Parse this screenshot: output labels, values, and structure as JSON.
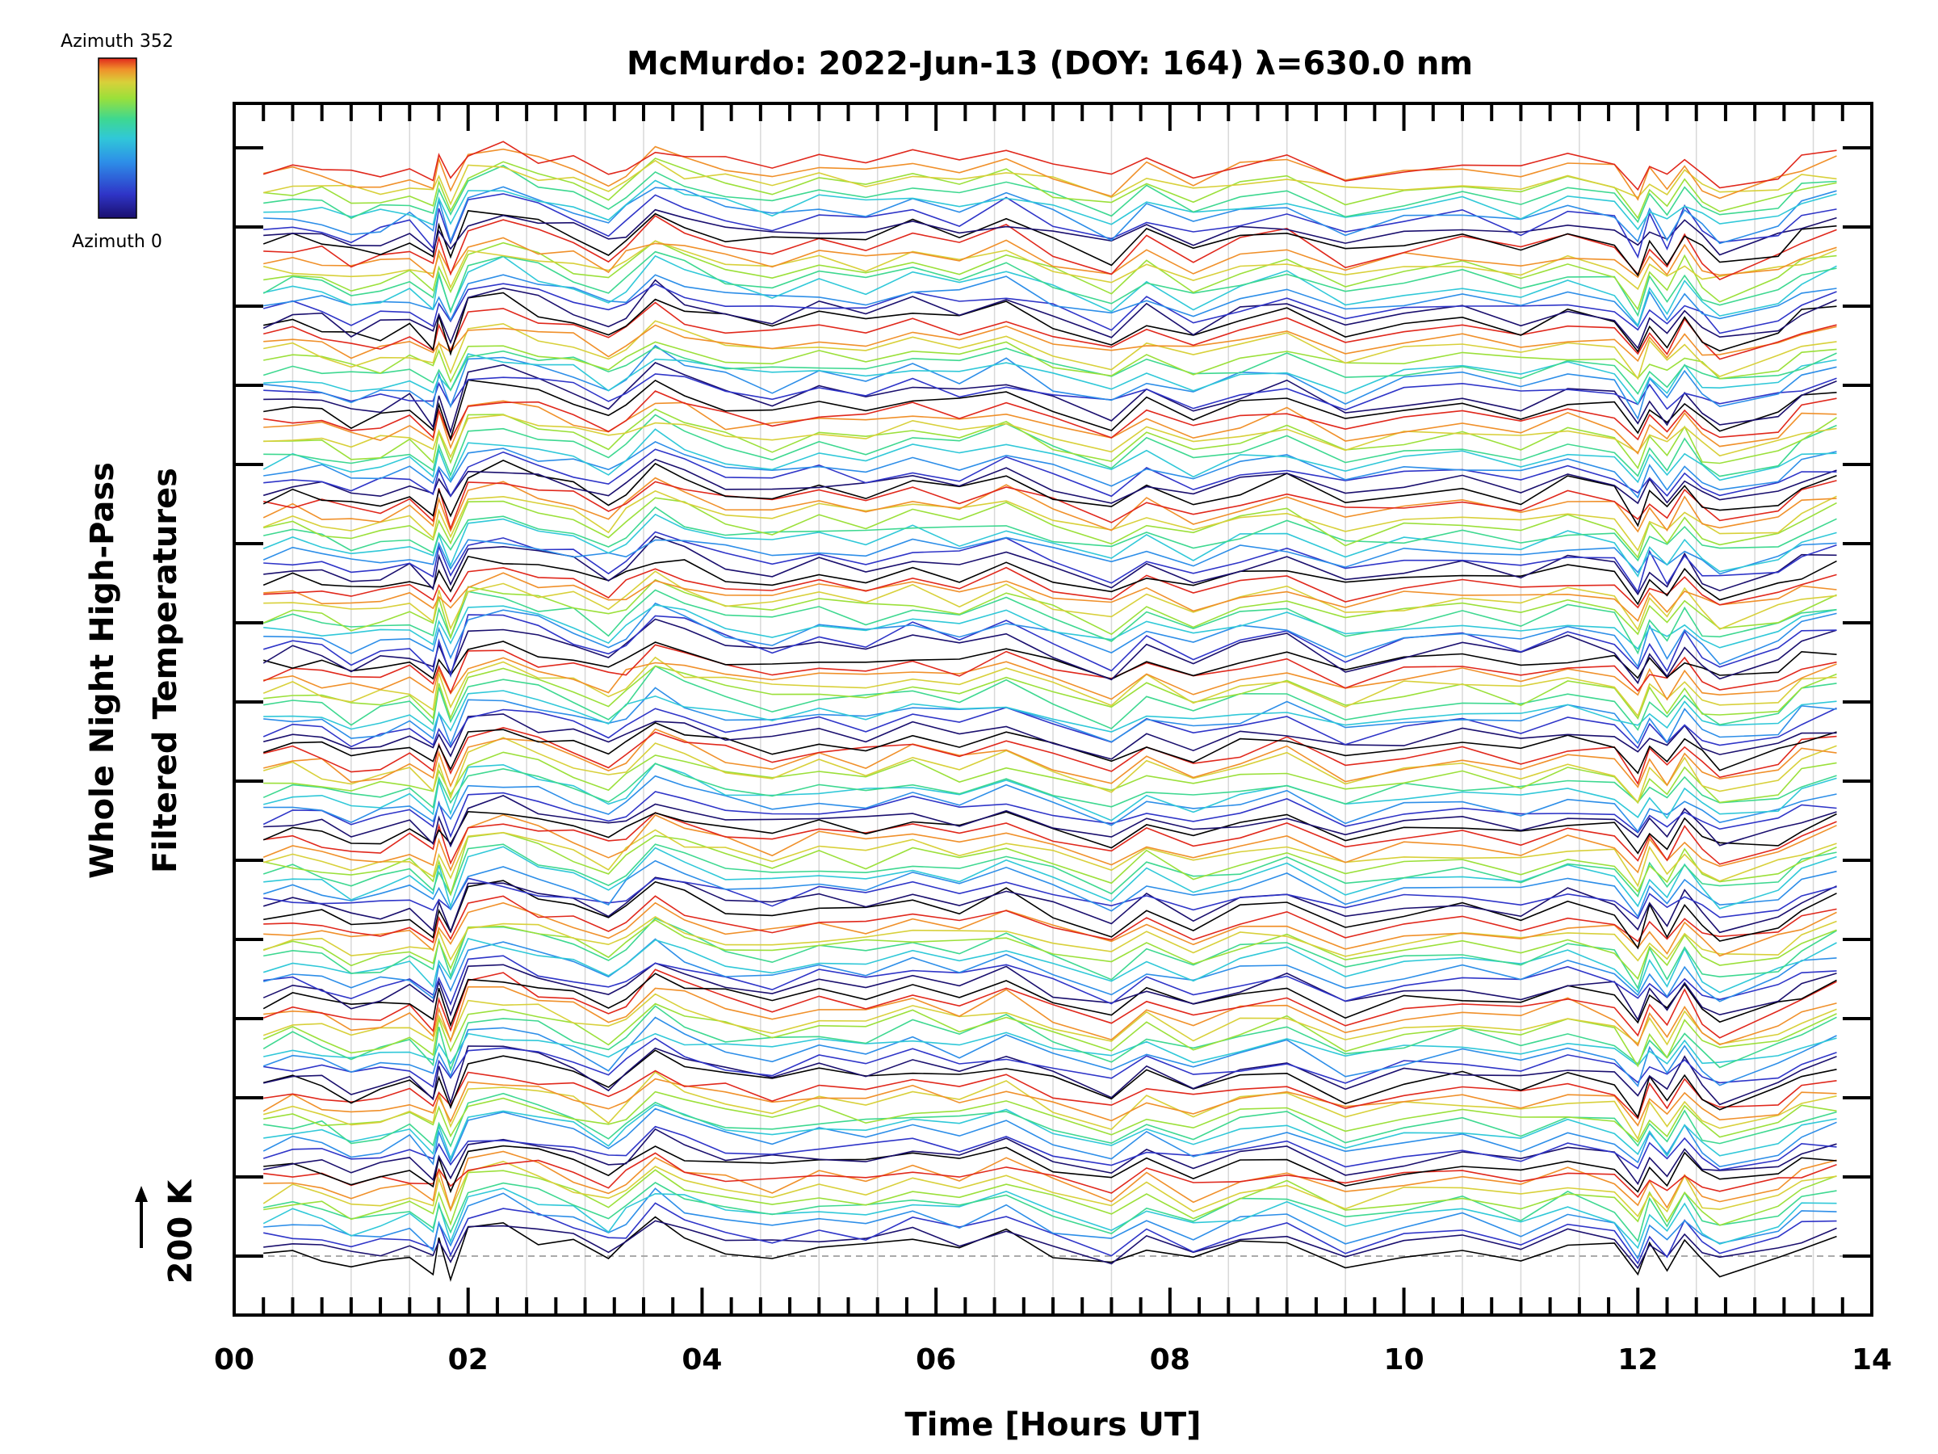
{
  "chart_data": {
    "type": "line",
    "title": "McMurdo: 2022-Jun-13 (DOY: 164) λ=630.0 nm",
    "xlabel": "Time [Hours UT]",
    "ylabel_line1": "Whole Night High-Pass",
    "ylabel_line2": "Filtered Temperatures",
    "scale_label": "200 K",
    "xlim": [
      0,
      14
    ],
    "x_ticks": [
      "00",
      "02",
      "04",
      "06",
      "08",
      "10",
      "12",
      "14"
    ],
    "colorbar": {
      "top_label": "Azimuth 352",
      "bottom_label": "Azimuth 0"
    },
    "colors": [
      "#000000",
      "#1a0f6e",
      "#2f35c8",
      "#2d8ee8",
      "#30c8d8",
      "#3ed890",
      "#9be03a",
      "#d8d03a",
      "#f0902a",
      "#e0281c"
    ],
    "x_times": [
      0.25,
      0.5,
      0.75,
      1.0,
      1.25,
      1.5,
      1.7,
      1.75,
      1.85,
      2.0,
      2.3,
      2.6,
      2.9,
      3.2,
      3.35,
      3.6,
      3.85,
      4.2,
      4.6,
      5.0,
      5.4,
      5.8,
      6.2,
      6.6,
      7.0,
      7.5,
      7.8,
      8.2,
      8.6,
      9.0,
      9.5,
      10.0,
      10.5,
      11.0,
      11.4,
      11.8,
      12.0,
      12.1,
      12.25,
      12.4,
      12.55,
      12.7,
      13.2,
      13.4,
      13.7
    ],
    "shape_profile": [
      0,
      3,
      1,
      -4,
      -2,
      2,
      -6,
      6,
      -8,
      12,
      14,
      9,
      5,
      -2,
      4,
      16,
      10,
      4,
      1,
      6,
      3,
      9,
      4,
      11,
      2,
      -6,
      5,
      -3,
      4,
      8,
      -4,
      2,
      5,
      0,
      7,
      3,
      -10,
      4,
      -6,
      7,
      -3,
      -8,
      -2,
      6,
      10
    ],
    "groups": 13,
    "curves_per_group": 10
  }
}
